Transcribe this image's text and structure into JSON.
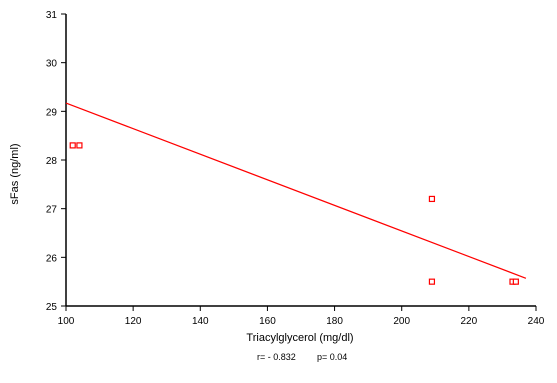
{
  "chart_data": {
    "type": "scatter",
    "title": "",
    "xlabel": "Triacylglycerol (mg/dl)",
    "ylabel": "sFas (ng/ml)",
    "xlim": [
      100,
      240
    ],
    "ylim": [
      25,
      31
    ],
    "xticks": [
      100,
      120,
      140,
      160,
      180,
      200,
      220,
      240
    ],
    "yticks": [
      25,
      26,
      27,
      28,
      29,
      30,
      31
    ],
    "grid": false,
    "points": [
      {
        "x": 102,
        "y": 28.3
      },
      {
        "x": 104,
        "y": 28.3
      },
      {
        "x": 209,
        "y": 27.2
      },
      {
        "x": 209,
        "y": 25.5
      },
      {
        "x": 233,
        "y": 25.5
      },
      {
        "x": 234,
        "y": 25.5
      }
    ],
    "regression_line": {
      "x": [
        100,
        237
      ],
      "y": [
        29.17,
        25.57
      ]
    },
    "marker_color": "#ff0000",
    "line_color": "#ff0000",
    "annotations": {
      "r": "r= - 0.832",
      "p": "p= 0.04"
    }
  }
}
